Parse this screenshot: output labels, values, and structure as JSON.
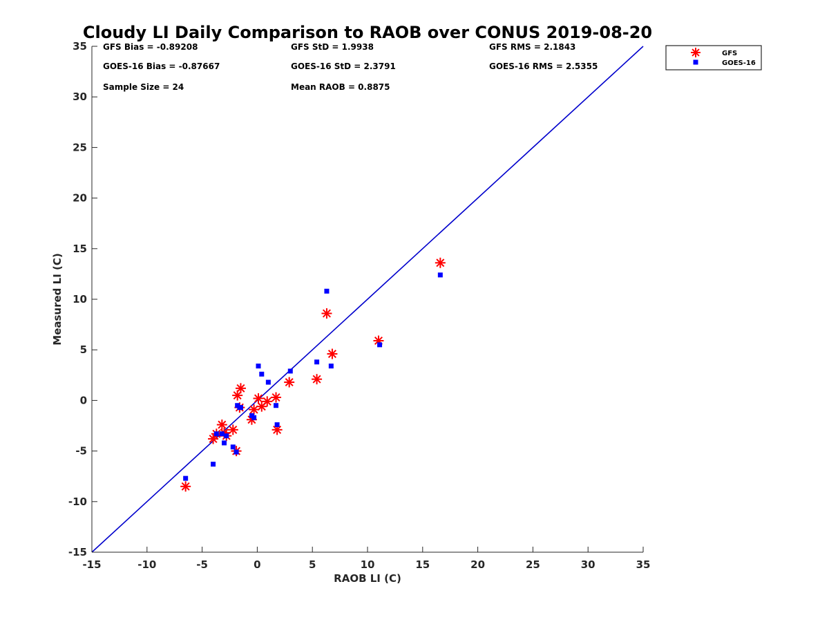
{
  "chart_data": {
    "type": "scatter",
    "title": "Cloudy LI Daily Comparison to RAOB over CONUS 2019-08-20",
    "xlabel": "RAOB LI (C)",
    "ylabel": "Measured LI (C)",
    "xlim": [
      -15,
      35
    ],
    "ylim": [
      -15,
      35
    ],
    "x_ticks": [
      "-15",
      "-10",
      "-5",
      "0",
      "5",
      "10",
      "15",
      "20",
      "25",
      "30",
      "35"
    ],
    "y_ticks": [
      "-15",
      "-10",
      "-5",
      "0",
      "5",
      "10",
      "15",
      "20",
      "25",
      "30",
      "35"
    ],
    "grid": false,
    "legend_position": "top-right, outside plot",
    "reference_line": {
      "type": "one-to-one",
      "color": "#0000cc"
    },
    "stats": [
      [
        "GFS Bias = -0.89208",
        "GFS StD = 1.9938",
        "GFS RMS = 2.1843"
      ],
      [
        "GOES-16 Bias = -0.87667",
        "GOES-16 StD = 2.3791",
        "GOES-16 RMS = 2.5355"
      ],
      [
        "Sample Size = 24",
        "Mean RAOB = 0.8875",
        ""
      ]
    ],
    "series": [
      {
        "name": "GFS",
        "marker": "asterisk",
        "color": "#ff0000",
        "x": [
          -6.5,
          -4.0,
          -3.7,
          -3.2,
          -3.0,
          -2.8,
          -2.2,
          -1.9,
          -1.8,
          -1.6,
          -1.5,
          -0.5,
          -0.3,
          0.1,
          0.4,
          0.9,
          1.7,
          1.8,
          2.9,
          5.4,
          6.3,
          6.8,
          11.0,
          16.6
        ],
        "y": [
          -8.5,
          -3.8,
          -3.3,
          -2.4,
          -3.2,
          -3.5,
          -2.9,
          -5.0,
          0.5,
          -0.7,
          1.2,
          -1.9,
          -0.9,
          0.2,
          -0.6,
          -0.1,
          0.3,
          -2.9,
          1.8,
          2.1,
          8.6,
          4.6,
          5.9,
          13.6
        ]
      },
      {
        "name": "GOES-16",
        "marker": "square",
        "color": "#0000ff",
        "x": [
          -6.5,
          -4.0,
          -3.7,
          -3.2,
          -3.0,
          -2.8,
          -2.2,
          -1.9,
          -1.8,
          -1.6,
          -1.5,
          -0.5,
          -0.3,
          0.1,
          0.4,
          1.0,
          1.7,
          1.8,
          3.0,
          5.4,
          6.3,
          6.7,
          11.1,
          16.6
        ],
        "y": [
          -7.7,
          -6.3,
          -3.3,
          -3.3,
          -4.2,
          -3.5,
          -4.6,
          -5.1,
          -0.5,
          -0.7,
          -0.7,
          -1.5,
          -1.7,
          3.4,
          2.6,
          1.8,
          -0.5,
          -2.4,
          2.9,
          3.8,
          10.8,
          3.4,
          5.5,
          12.4
        ]
      }
    ]
  }
}
